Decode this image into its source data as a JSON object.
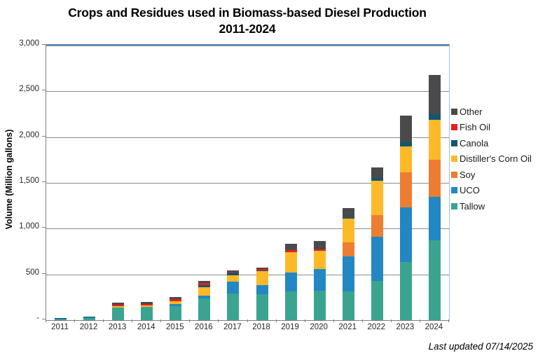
{
  "title": {
    "line1": "Crops and Residues used in Biomass-based Diesel Production",
    "line2": "2011-2024"
  },
  "y_axis": {
    "title": "Volume (Million gallons)",
    "tick_labels": [
      "3,000",
      "2,500",
      "2,000",
      "1,500",
      "1,000",
      "500",
      "-"
    ],
    "tick_values": [
      3000,
      2500,
      2000,
      1500,
      1000,
      500,
      0
    ],
    "max": 3000,
    "min": 0,
    "step": 500
  },
  "footer": {
    "last_updated": "Last updated 07/14/2025"
  },
  "legend": [
    {
      "label": "Other",
      "color": "#4A4A4C"
    },
    {
      "label": "Fish Oil",
      "color": "#EC1C24"
    },
    {
      "label": "Canola",
      "color": "#14566F"
    },
    {
      "label": "Distiller's Corn Oil",
      "color": "#FDB927"
    },
    {
      "label": "Soy",
      "color": "#ED7D31"
    },
    {
      "label": "UCO",
      "color": "#2287C3"
    },
    {
      "label": "Tallow",
      "color": "#3AA491"
    }
  ],
  "chart_data": {
    "type": "bar",
    "stacked": true,
    "title": "Crops and Residues used in Biomass-based Diesel Production 2011-2024",
    "xlabel": "",
    "ylabel": "Volume (Million gallons)",
    "ylim": [
      0,
      3000
    ],
    "grid": true,
    "legend_position": "right",
    "categories": [
      "2011",
      "2012",
      "2013",
      "2014",
      "2015",
      "2016",
      "2017",
      "2018",
      "2019",
      "2020",
      "2021",
      "2022",
      "2023",
      "2024"
    ],
    "series": [
      {
        "name": "Tallow",
        "color": "#3AA491",
        "values": [
          14,
          22,
          135,
          145,
          155,
          240,
          288,
          285,
          311,
          318,
          311,
          425,
          636,
          873
        ]
      },
      {
        "name": "UCO",
        "color": "#2287C3",
        "values": [
          4,
          16,
          0,
          0,
          18,
          28,
          132,
          97,
          206,
          241,
          389,
          483,
          598,
          471
        ]
      },
      {
        "name": "Soy",
        "color": "#ED7D31",
        "values": [
          0,
          0,
          0,
          0,
          0,
          0,
          0,
          0,
          0,
          0,
          153,
          242,
          382,
          412
        ]
      },
      {
        "name": "Distiller's Corn Oil",
        "color": "#FDB927",
        "values": [
          0,
          0,
          15,
          13,
          35,
          92,
          69,
          155,
          229,
          198,
          260,
          371,
          285,
          433
        ]
      },
      {
        "name": "Canola",
        "color": "#14566F",
        "values": [
          2,
          2,
          0,
          0,
          0,
          23,
          28,
          8,
          0,
          0,
          8,
          30,
          46,
          63
        ]
      },
      {
        "name": "Fish Oil",
        "color": "#EC1C24",
        "values": [
          0,
          0,
          22,
          20,
          18,
          22,
          15,
          15,
          18,
          18,
          0,
          0,
          0,
          0
        ]
      },
      {
        "name": "Other",
        "color": "#4A4A4C",
        "values": [
          0,
          0,
          23,
          18,
          23,
          22,
          15,
          15,
          71,
          89,
          107,
          115,
          285,
          428
        ]
      }
    ]
  }
}
